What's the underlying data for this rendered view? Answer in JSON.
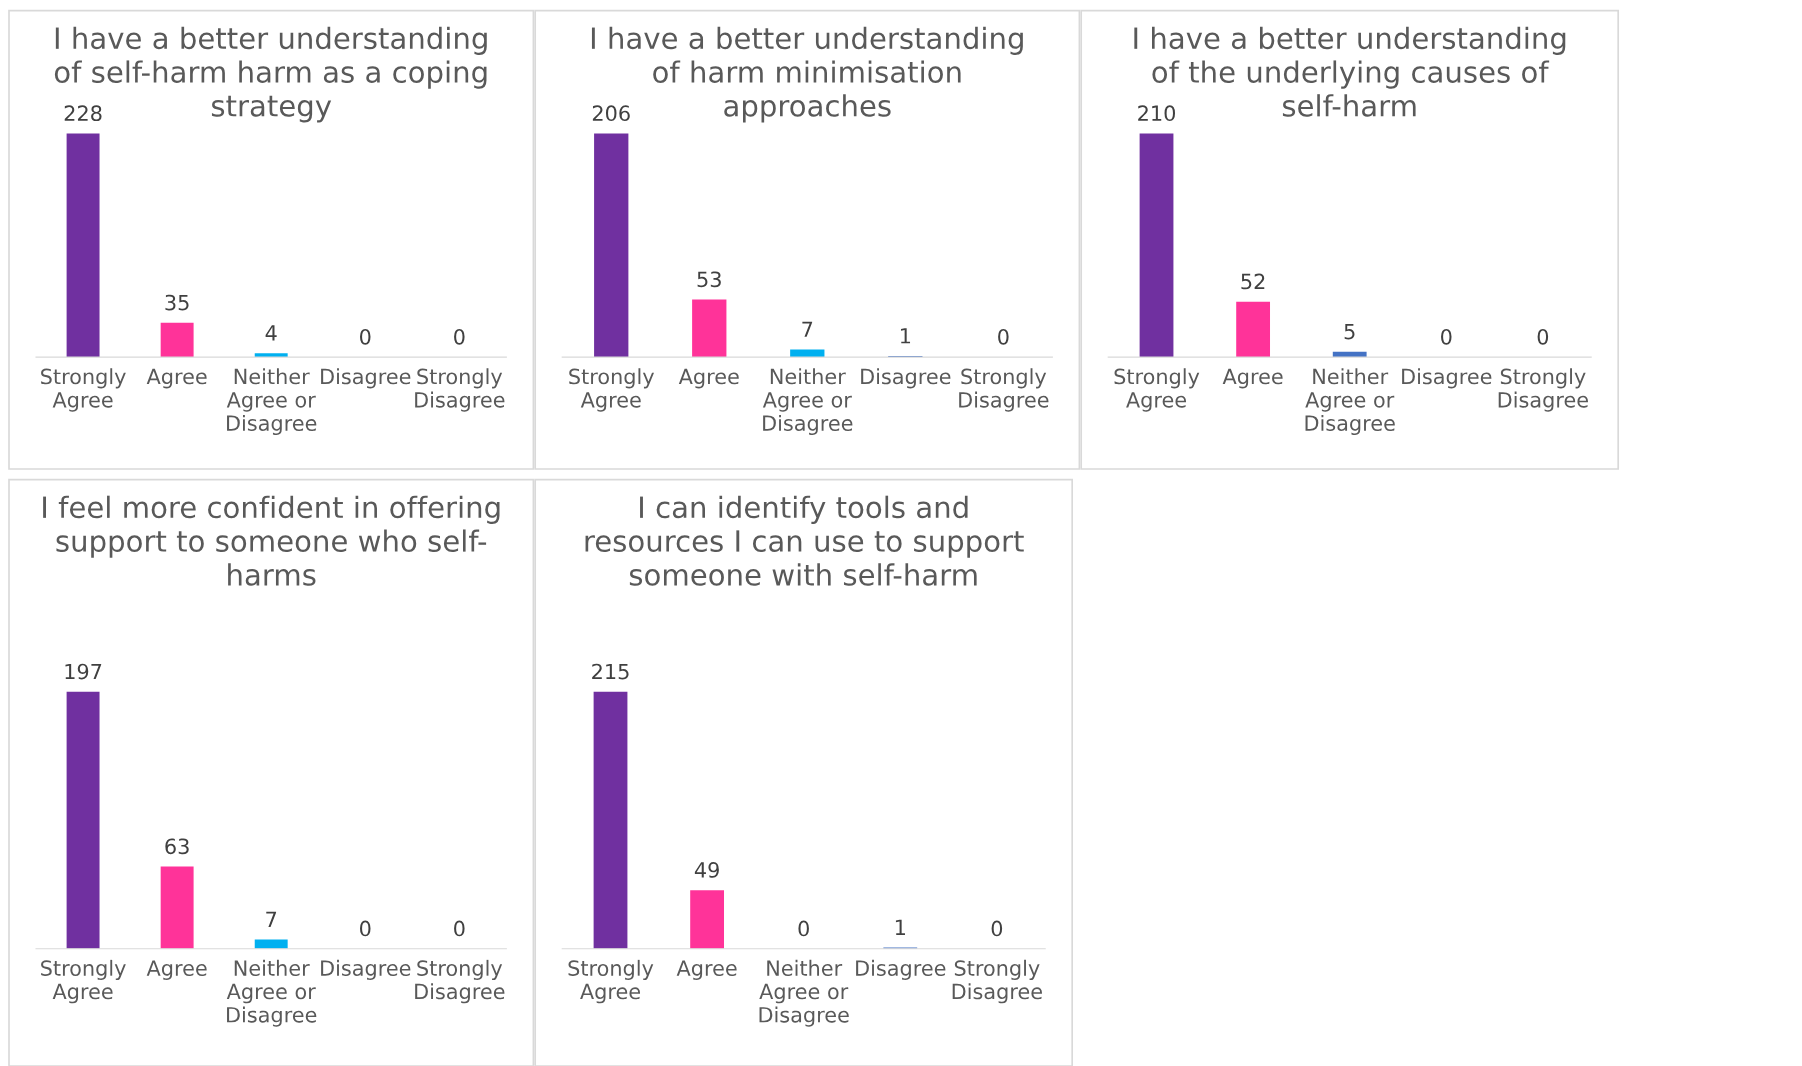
{
  "chart_data": [
    {
      "type": "bar",
      "title": "I have a better understanding\nof self-harm harm as a coping\nstrategy",
      "categories": [
        "Strongly\nAgree",
        "Agree",
        "Neither\nAgree or\nDisagree",
        "Disagree",
        "Strongly\nDisagree"
      ],
      "values": [
        228,
        35,
        4,
        0,
        0
      ],
      "colors": [
        "#7030a0",
        "#ff3399",
        "#00b0f0",
        "#4472c4",
        "#4472c4"
      ],
      "data_labels": true,
      "tick_labels": "x",
      "grid": false,
      "legend": false
    },
    {
      "type": "bar",
      "title": "I have a better understanding\nof harm minimisation\napproaches",
      "categories": [
        "Strongly\nAgree",
        "Agree",
        "Neither\nAgree or\nDisagree",
        "Disagree",
        "Strongly\nDisagree"
      ],
      "values": [
        206,
        53,
        7,
        1,
        0
      ],
      "colors": [
        "#7030a0",
        "#ff3399",
        "#00b0f0",
        "#4472c4",
        "#4472c4"
      ],
      "data_labels": true,
      "tick_labels": "x",
      "grid": false,
      "legend": false
    },
    {
      "type": "bar",
      "title": "I have a better understanding\nof the underlying causes of\nself-harm",
      "categories": [
        "Strongly\nAgree",
        "Agree",
        "Neither\nAgree or\nDisagree",
        "Disagree",
        "Strongly\nDisagree"
      ],
      "values": [
        210,
        52,
        5,
        0,
        0
      ],
      "colors": [
        "#7030a0",
        "#ff3399",
        "#4472c4",
        "#4472c4",
        "#4472c4"
      ],
      "data_labels": true,
      "tick_labels": "x",
      "grid": false,
      "legend": false
    },
    {
      "type": "bar",
      "title": "I feel more confident in offering\nsupport to someone who self-\nharms",
      "categories": [
        "Strongly\nAgree",
        "Agree",
        "Neither\nAgree or\nDisagree",
        "Disagree",
        "Strongly\nDisagree"
      ],
      "values": [
        197,
        63,
        7,
        0,
        0
      ],
      "colors": [
        "#7030a0",
        "#ff3399",
        "#00b0f0",
        "#4472c4",
        "#4472c4"
      ],
      "data_labels": true,
      "tick_labels": "x",
      "grid": false,
      "legend": false
    },
    {
      "type": "bar",
      "title": "I can identify tools and\nresources I can use to support\nsomeone with self-harm",
      "categories": [
        "Strongly\nAgree",
        "Agree",
        "Neither\nAgree or\nDisagree",
        "Disagree",
        "Strongly\nDisagree"
      ],
      "values": [
        215,
        49,
        0,
        1,
        0
      ],
      "colors": [
        "#7030a0",
        "#ff3399",
        "#00b0f0",
        "#4472c4",
        "#4472c4"
      ],
      "data_labels": true,
      "tick_labels": "x",
      "grid": false,
      "legend": false
    }
  ]
}
